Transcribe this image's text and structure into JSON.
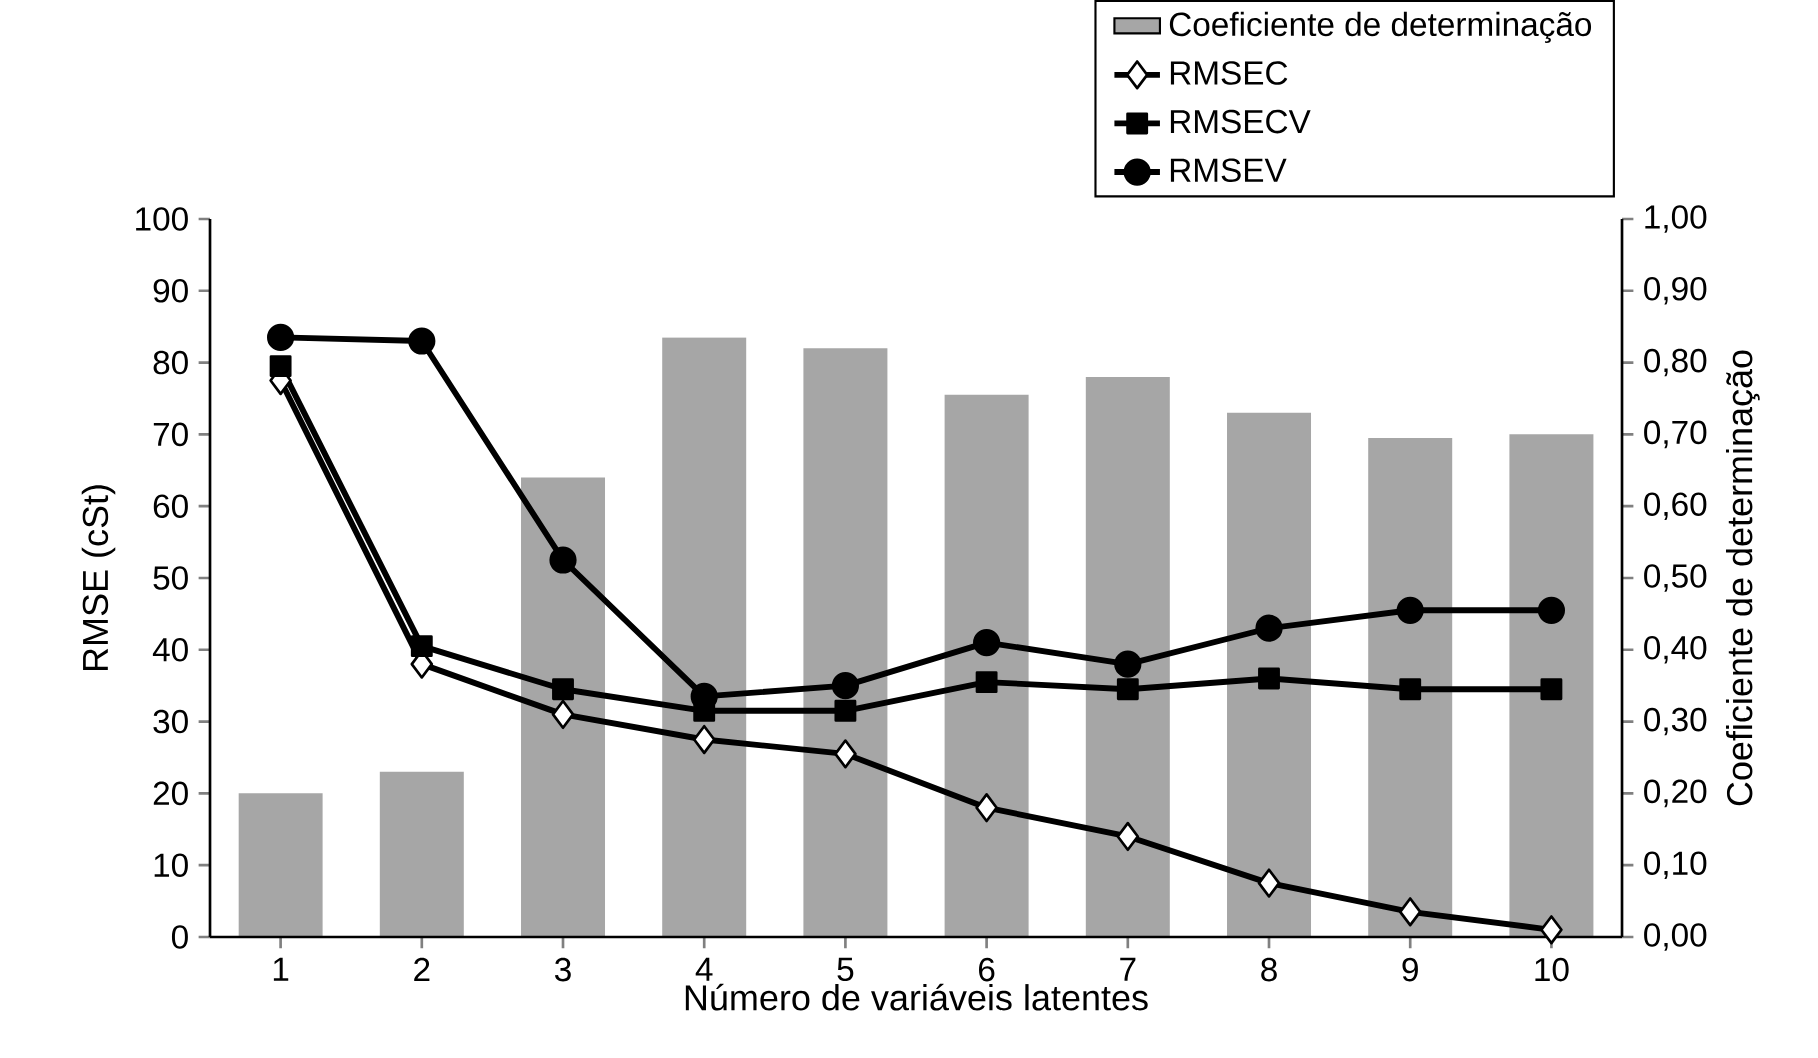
{
  "chart_data": {
    "type": "line",
    "xlabel": "Número de variáveis latentes",
    "ylabel": "RMSE (cSt)",
    "y2label": "Coeficiente de determinação",
    "categories": [
      "1",
      "2",
      "3",
      "4",
      "5",
      "6",
      "7",
      "8",
      "9",
      "10"
    ],
    "series": [
      {
        "name": "Coeficiente de determinação",
        "type": "bar",
        "axis": "y2",
        "color": "#a6a6a6",
        "values": [
          0.2,
          0.23,
          0.64,
          0.835,
          0.82,
          0.755,
          0.78,
          0.73,
          0.695,
          0.7
        ]
      },
      {
        "name": "RMSEC",
        "color": "#000000",
        "marker": "diamond",
        "values": [
          77.5,
          38,
          31,
          27.5,
          25.5,
          18,
          14,
          7.5,
          3.5,
          1
        ]
      },
      {
        "name": "RMSECV",
        "color": "#000000",
        "marker": "square",
        "values": [
          79.5,
          40.5,
          34.5,
          31.5,
          31.5,
          35.5,
          34.5,
          36,
          34.5,
          34.5
        ]
      },
      {
        "name": "RMSEV",
        "color": "#000000",
        "marker": "circle",
        "values": [
          83.5,
          83,
          52.5,
          33.5,
          35,
          41,
          38,
          43,
          45.5,
          45.5
        ]
      }
    ],
    "ylim": [
      0,
      100
    ],
    "yticks": [
      0,
      10,
      20,
      30,
      40,
      50,
      60,
      70,
      80,
      90,
      100
    ],
    "y2lim": [
      0,
      1
    ],
    "y2ticks": [
      {
        "value": 0,
        "label": "0,00"
      },
      {
        "value": 0.1,
        "label": "0,10"
      },
      {
        "value": 0.2,
        "label": "0,20"
      },
      {
        "value": 0.3,
        "label": "0,30"
      },
      {
        "value": 0.4,
        "label": "0,40"
      },
      {
        "value": 0.5,
        "label": "0,50"
      },
      {
        "value": 0.6,
        "label": "0,60"
      },
      {
        "value": 0.7,
        "label": "0,70"
      },
      {
        "value": 0.8,
        "label": "0,80"
      },
      {
        "value": 0.9,
        "label": "0,90"
      },
      {
        "value": 1,
        "label": "1,00"
      }
    ],
    "legend": "top right",
    "grid": false
  }
}
